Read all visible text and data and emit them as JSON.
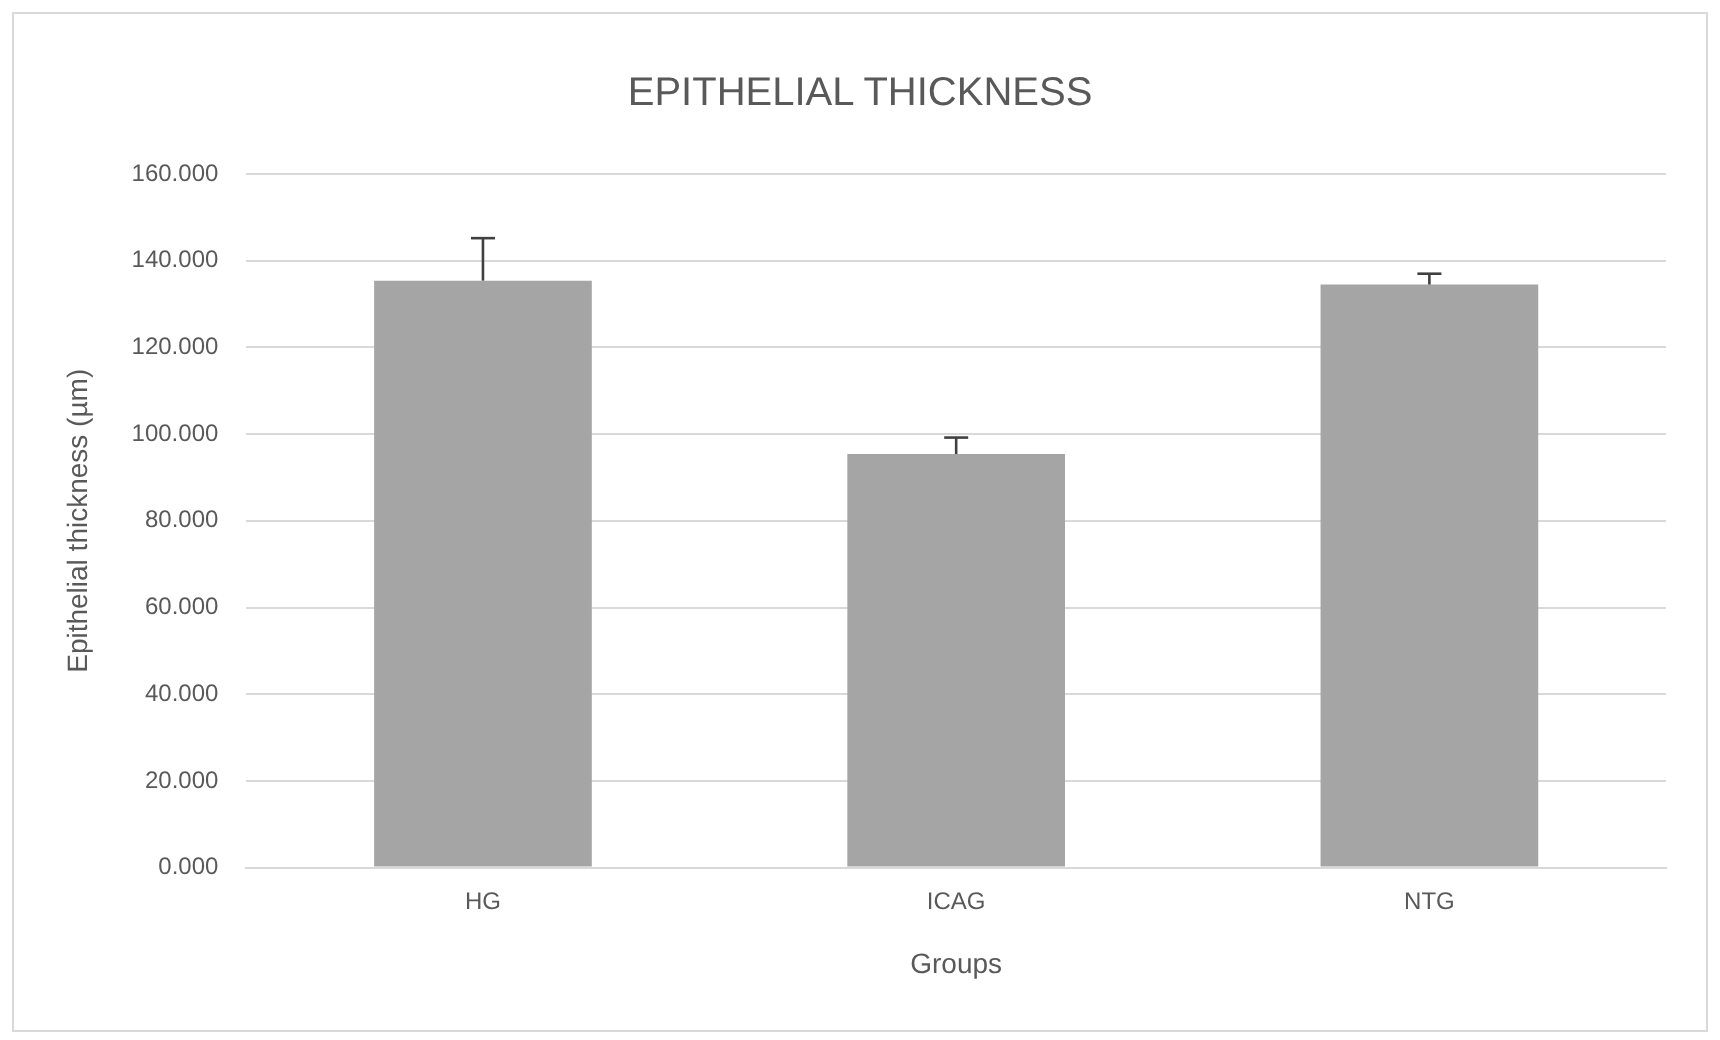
{
  "chart_data": {
    "type": "bar",
    "title": "EPITHELIAL THICKNESS",
    "xlabel": "Groups",
    "ylabel": "Epithelial thickness (µm)",
    "categories": [
      "HG",
      "ICAG",
      "NTG"
    ],
    "values": [
      135.4,
      95.4,
      134.5
    ],
    "errors": [
      [
        135.4,
        145.2
      ],
      [
        95.4,
        99.2
      ],
      [
        134.5,
        137.0
      ]
    ],
    "color": "#a5a5a5",
    "ylim": [
      0,
      160
    ],
    "yticks": [
      {
        "value": 0,
        "label": "0.000"
      },
      {
        "value": 20,
        "label": "20.000"
      },
      {
        "value": 40,
        "label": "40.000"
      },
      {
        "value": 60,
        "label": "60.000"
      },
      {
        "value": 80,
        "label": "80.000"
      },
      {
        "value": 100,
        "label": "100.000"
      },
      {
        "value": 120,
        "label": "120.000"
      },
      {
        "value": 140,
        "label": "140.000"
      },
      {
        "value": 160,
        "label": "160.000"
      }
    ],
    "grid": "y"
  }
}
